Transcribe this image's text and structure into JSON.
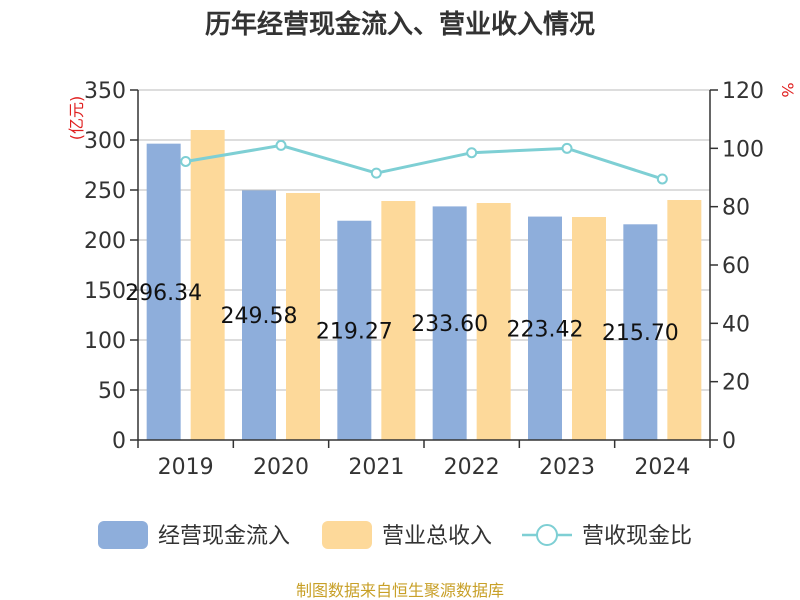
{
  "title": "历年经营现金流入、营业收入情况",
  "source": "制图数据来自恒生聚源数据库",
  "colors": {
    "cash_inflow": "#8eaedb",
    "revenue": "#fdd99a",
    "ratio": "#7ecfd4",
    "axis": "#333333",
    "grid": "#bbbbbb",
    "unit": "#e02020",
    "source": "#c8a028"
  },
  "chart_data": {
    "type": "bar",
    "title": "历年经营现金流入、营业收入情况",
    "categories": [
      "2019",
      "2020",
      "2021",
      "2022",
      "2023",
      "2024"
    ],
    "y_left": {
      "label": "(亿元)",
      "min": 0,
      "max": 350,
      "ticks": [
        0,
        50,
        100,
        150,
        200,
        250,
        300,
        350
      ]
    },
    "y_right": {
      "label": "%",
      "min": 0,
      "max": 120,
      "ticks": [
        0,
        20,
        40,
        60,
        80,
        100,
        120
      ]
    },
    "grid": true,
    "legend_position": "bottom",
    "series": [
      {
        "name": "经营现金流入",
        "type": "bar",
        "axis": "left",
        "values": [
          296.34,
          249.58,
          219.27,
          233.6,
          223.42,
          215.7
        ],
        "labels": [
          "296.34",
          "249.58",
          "219.27",
          "233.60",
          "223.42",
          "215.70"
        ]
      },
      {
        "name": "营业总收入",
        "type": "bar",
        "axis": "left",
        "values": [
          310,
          247,
          239,
          237,
          223,
          240
        ]
      },
      {
        "name": "营收现金比",
        "type": "line",
        "axis": "right",
        "values": [
          95.5,
          101,
          91.5,
          98.5,
          100,
          89.5
        ]
      }
    ]
  }
}
